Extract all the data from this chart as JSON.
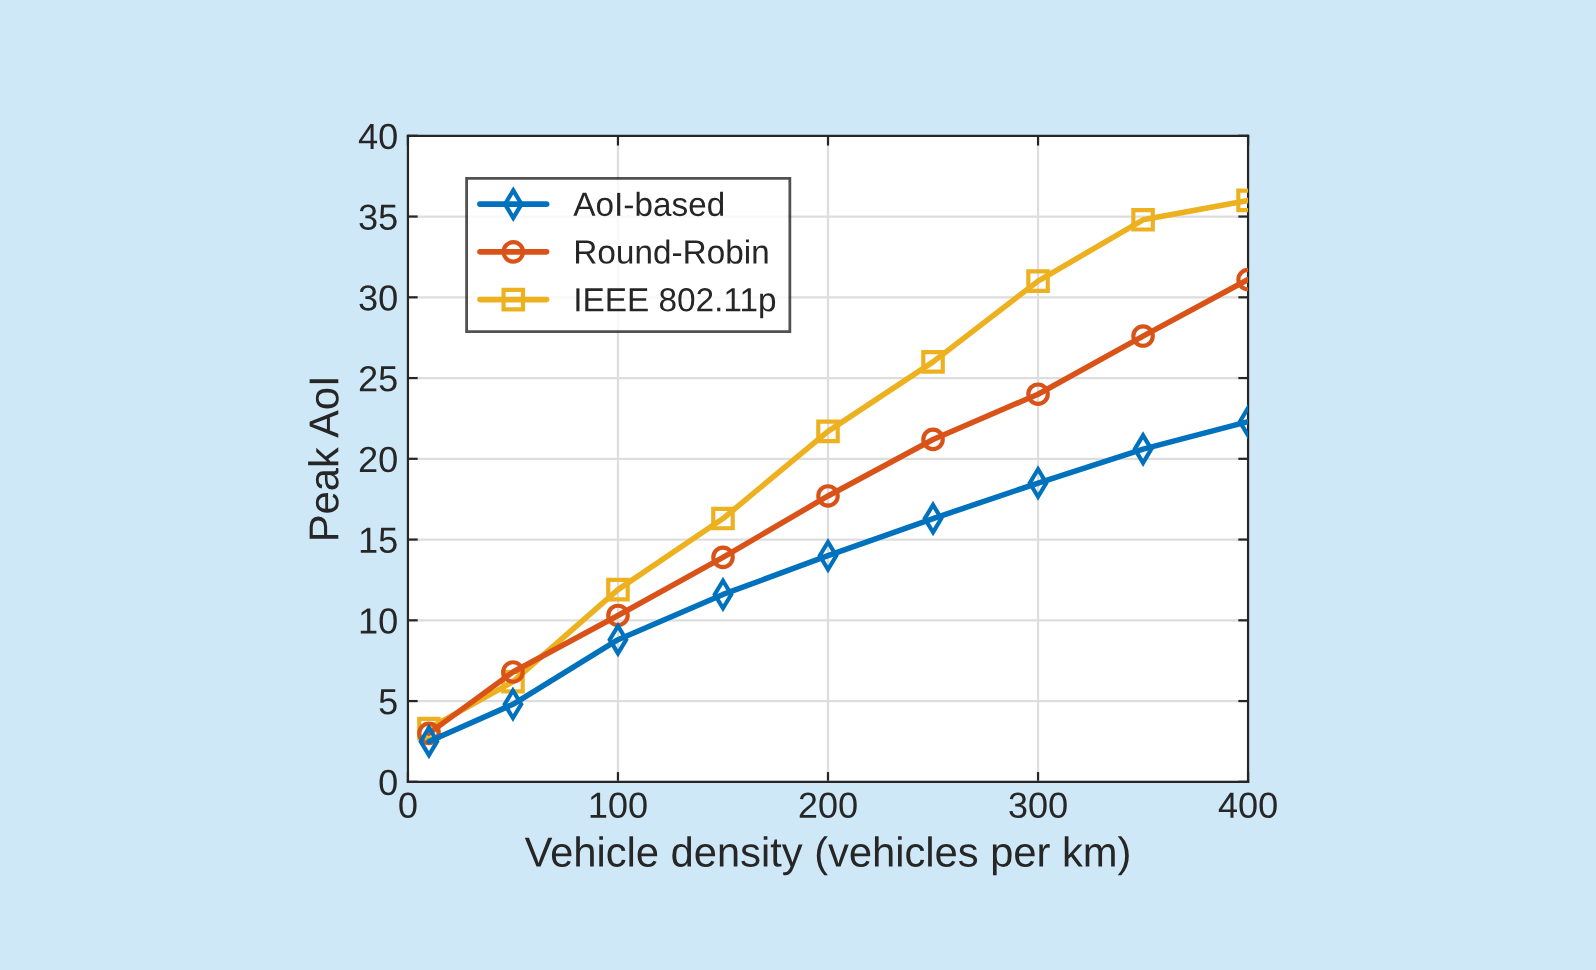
{
  "chart_data": {
    "type": "line",
    "xlabel": "Vehicle density (vehicles per km)",
    "ylabel": "Peak AoI",
    "x": [
      10,
      50,
      100,
      150,
      200,
      250,
      300,
      350,
      400
    ],
    "series": [
      {
        "name": "AoI-based",
        "color": "#0072bd",
        "marker": "diamond",
        "values": [
          2.5,
          4.8,
          8.8,
          11.6,
          14.0,
          16.3,
          18.5,
          20.6,
          22.3
        ]
      },
      {
        "name": "Round-Robin",
        "color": "#d95319",
        "marker": "circle",
        "values": [
          3.0,
          6.8,
          10.3,
          13.9,
          17.7,
          21.2,
          24.0,
          27.6,
          31.1
        ]
      },
      {
        "name": "IEEE 802.11p",
        "color": "#edb120",
        "marker": "square",
        "values": [
          3.3,
          6.2,
          11.9,
          16.3,
          21.7,
          26.0,
          31.0,
          34.8,
          36.0
        ]
      }
    ],
    "xlim": [
      0,
      400
    ],
    "xticks": [
      0,
      100,
      200,
      300,
      400
    ],
    "ylim": [
      0,
      40
    ],
    "yticks": [
      0,
      5,
      10,
      15,
      20,
      25,
      30,
      35,
      40
    ],
    "grid": true,
    "legend": "top left",
    "line_style": "solid"
  }
}
